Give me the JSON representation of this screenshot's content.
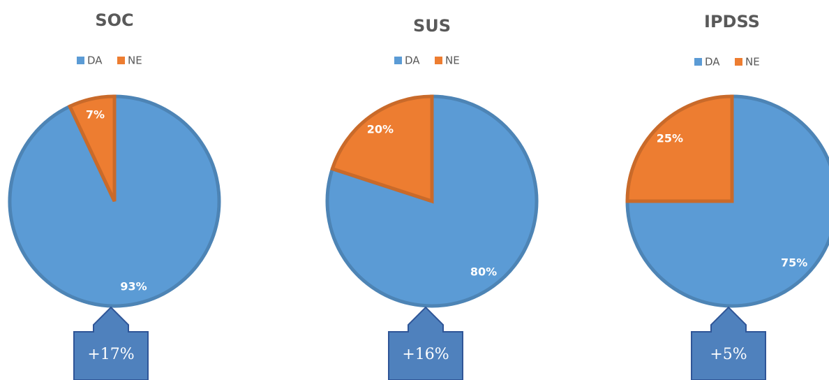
{
  "chart_data": [
    {
      "type": "pie",
      "title": "SOC",
      "categories": [
        "DA",
        "NE"
      ],
      "values": [
        93,
        7
      ],
      "value_labels": [
        "93%",
        "7%"
      ],
      "colors": [
        "#5b9bd5",
        "#ed7d31"
      ],
      "legend": "top",
      "annotation": "+17%"
    },
    {
      "type": "pie",
      "title": "SUS",
      "categories": [
        "DA",
        "NE"
      ],
      "values": [
        80,
        20
      ],
      "value_labels": [
        "80%",
        "20%"
      ],
      "colors": [
        "#5b9bd5",
        "#ed7d31"
      ],
      "legend": "top",
      "annotation": "+16%"
    },
    {
      "type": "pie",
      "title": "IPDSS",
      "categories": [
        "DA",
        "NE"
      ],
      "values": [
        75,
        25
      ],
      "value_labels": [
        "75%",
        "25%"
      ],
      "colors": [
        "#5b9bd5",
        "#ed7d31"
      ],
      "legend": "top",
      "annotation": "+5%"
    }
  ]
}
